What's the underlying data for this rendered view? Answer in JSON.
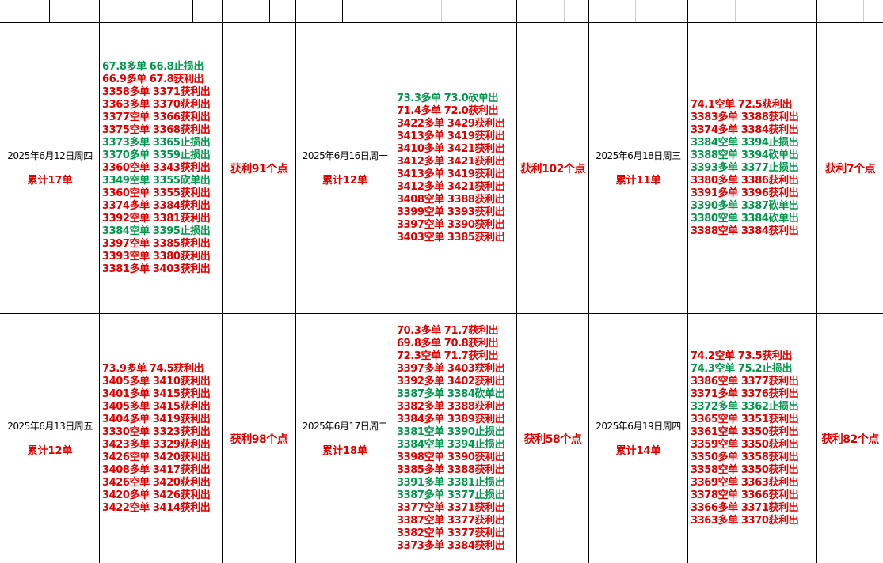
{
  "days": [
    {
      "date": "2025年6月12日周四",
      "total": "累计17单",
      "result": "获利91个点",
      "trades": [
        {
          "text": "67.8多单 66.8止损出",
          "color": "#00964b"
        },
        {
          "text": "66.9多单 67.8获利出",
          "color": "#e00000"
        },
        {
          "text": "3358多单 3371获利出",
          "color": "#e00000"
        },
        {
          "text": "3363多单 3370获利出",
          "color": "#e00000"
        },
        {
          "text": "3377空单 3366获利出",
          "color": "#e00000"
        },
        {
          "text": "3375空单 3368获利出",
          "color": "#e00000"
        },
        {
          "text": "3373多单 3365止损出",
          "color": "#00964b"
        },
        {
          "text": "3370多单 3359止损出",
          "color": "#00964b"
        },
        {
          "text": "3360空单 3343获利出",
          "color": "#e00000"
        },
        {
          "text": "3349空单 3355砍单出",
          "color": "#00964b"
        },
        {
          "text": "3360空单 3355获利出",
          "color": "#e00000"
        },
        {
          "text": "3374多单 3384获利出",
          "color": "#e00000"
        },
        {
          "text": "3392空单 3381获利出",
          "color": "#e00000"
        },
        {
          "text": "3384空单 3395止损出",
          "color": "#00964b"
        },
        {
          "text": "3397空单 3385获利出",
          "color": "#e00000"
        },
        {
          "text": "3393空单 3380获利出",
          "color": "#e00000"
        },
        {
          "text": "3381多单 3403获利出",
          "color": "#e00000"
        }
      ]
    },
    {
      "date": "2025年6月16日周一",
      "total": "累计12单",
      "result": "获利102个点",
      "trades": [
        {
          "text": "73.3多单 73.0砍单出",
          "color": "#00964b"
        },
        {
          "text": "71.4多单 72.0获利出",
          "color": "#e00000"
        },
        {
          "text": "3422多单 3429获利出",
          "color": "#e00000"
        },
        {
          "text": "3413多单 3419获利出",
          "color": "#e00000"
        },
        {
          "text": "3410多单 3421获利出",
          "color": "#e00000"
        },
        {
          "text": "3412多单 3421获利出",
          "color": "#e00000"
        },
        {
          "text": "3413多单 3419获利出",
          "color": "#e00000"
        },
        {
          "text": "3412多单 3421获利出",
          "color": "#e00000"
        },
        {
          "text": "3408空单 3388获利出",
          "color": "#e00000"
        },
        {
          "text": "3399空单 3393获利出",
          "color": "#e00000"
        },
        {
          "text": "3397空单 3390获利出",
          "color": "#e00000"
        },
        {
          "text": "3403空单 3385获利出",
          "color": "#e00000"
        }
      ]
    },
    {
      "date": "2025年6月18日周三",
      "total": "累计11单",
      "result": "获利7个点",
      "trades": [
        {
          "text": "74.1空单 72.5获利出",
          "color": "#e00000"
        },
        {
          "text": "3383多单 3388获利出",
          "color": "#e00000"
        },
        {
          "text": "3374多单 3384获利出",
          "color": "#e00000"
        },
        {
          "text": "3384空单 3394止损出",
          "color": "#00964b"
        },
        {
          "text": "3388空单 3394砍单出",
          "color": "#00964b"
        },
        {
          "text": "3393多单 3377止损出",
          "color": "#00964b"
        },
        {
          "text": "3380多单 3386获利出",
          "color": "#e00000"
        },
        {
          "text": "3391多单 3396获利出",
          "color": "#e00000"
        },
        {
          "text": "3390多单 3387砍单出",
          "color": "#00964b"
        },
        {
          "text": "3380空单 3384砍单出",
          "color": "#00964b"
        },
        {
          "text": "3388空单 3384获利出",
          "color": "#e00000"
        }
      ]
    },
    {
      "date": "2025年6月13日周五",
      "total": "累计12单",
      "result": "获利98个点",
      "trades": [
        {
          "text": "73.9多单 74.5获利出",
          "color": "#e00000"
        },
        {
          "text": "3405多单 3410获利出",
          "color": "#e00000"
        },
        {
          "text": "3401多单 3415获利出",
          "color": "#e00000"
        },
        {
          "text": "3405多单 3415获利出",
          "color": "#e00000"
        },
        {
          "text": "3404多单 3419获利出",
          "color": "#e00000"
        },
        {
          "text": "3330空单 3323获利出",
          "color": "#e00000"
        },
        {
          "text": "3423多单 3329获利出",
          "color": "#e00000"
        },
        {
          "text": "3426空单 3420获利出",
          "color": "#e00000"
        },
        {
          "text": "3408多单 3417获利出",
          "color": "#e00000"
        },
        {
          "text": "3426空单 3420获利出",
          "color": "#e00000"
        },
        {
          "text": "3420多单 3426获利出",
          "color": "#e00000"
        },
        {
          "text": "3422空单 3414获利出",
          "color": "#e00000"
        }
      ]
    },
    {
      "date": "2025年6月17日周二",
      "total": "累计18单",
      "result": "获利58个点",
      "trades": [
        {
          "text": "70.3多单 71.7获利出",
          "color": "#e00000"
        },
        {
          "text": "69.8多单 70.8获利出",
          "color": "#e00000"
        },
        {
          "text": "72.3空单 71.7获利出",
          "color": "#e00000"
        },
        {
          "text": "3397多单 3403获利出",
          "color": "#e00000"
        },
        {
          "text": "3392多单 3402获利出",
          "color": "#e00000"
        },
        {
          "text": "3387多单 3384砍单出",
          "color": "#00964b"
        },
        {
          "text": "3382多单 3388获利出",
          "color": "#e00000"
        },
        {
          "text": "3384多单 3389获利出",
          "color": "#e00000"
        },
        {
          "text": "3381空单 3390止损出",
          "color": "#00964b"
        },
        {
          "text": "3384空单 3394止损出",
          "color": "#00964b"
        },
        {
          "text": "3398空单 3390获利出",
          "color": "#e00000"
        },
        {
          "text": "3385多单 3388获利出",
          "color": "#e00000"
        },
        {
          "text": "3391多单 3381止损出",
          "color": "#00964b"
        },
        {
          "text": "3387多单 3377止损出",
          "color": "#00964b"
        },
        {
          "text": "3377空单 3371获利出",
          "color": "#e00000"
        },
        {
          "text": "3387空单 3377获利出",
          "color": "#e00000"
        },
        {
          "text": "3382空单 3377获利出",
          "color": "#e00000"
        },
        {
          "text": "3373多单 3384获利出",
          "color": "#e00000"
        }
      ]
    },
    {
      "date": "2025年6月19日周四",
      "total": "累计14单",
      "result": "获利82个点",
      "trades": [
        {
          "text": "74.2空单 73.5获利出",
          "color": "#e00000"
        },
        {
          "text": "74.3空单 75.2止损出",
          "color": "#00964b"
        },
        {
          "text": "3386空单 3377获利出",
          "color": "#e00000"
        },
        {
          "text": "3371多单 3376获利出",
          "color": "#e00000"
        },
        {
          "text": "3372多单 3362止损出",
          "color": "#00964b"
        },
        {
          "text": "3365空单 3351获利出",
          "color": "#e00000"
        },
        {
          "text": "3361空单 3350获利出",
          "color": "#e00000"
        },
        {
          "text": "3359空单 3350获利出",
          "color": "#e00000"
        },
        {
          "text": "3350多单 3358获利出",
          "color": "#e00000"
        },
        {
          "text": "3358空单 3350获利出",
          "color": "#e00000"
        },
        {
          "text": "3369空单 3363获利出",
          "color": "#e00000"
        },
        {
          "text": "3378空单 3366获利出",
          "color": "#e00000"
        },
        {
          "text": "3366多单 3371获利出",
          "color": "#e00000"
        },
        {
          "text": "3363多单 3370获利出",
          "color": "#e00000"
        }
      ]
    }
  ]
}
